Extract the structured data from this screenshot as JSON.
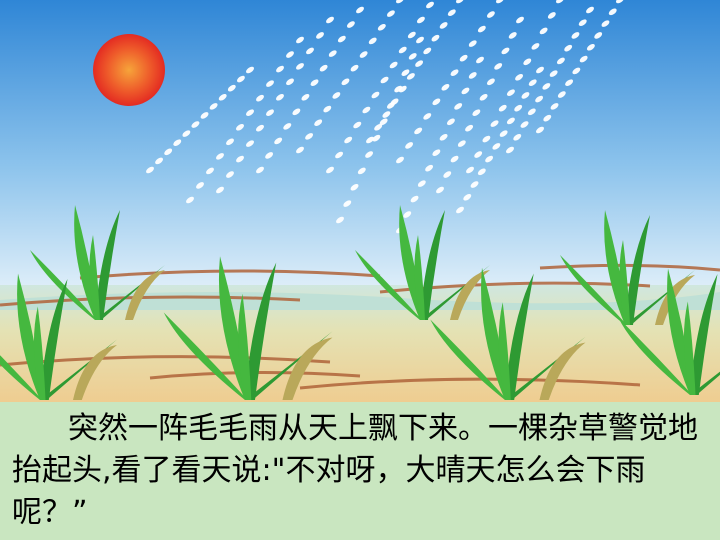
{
  "scene": {
    "description_icons": [
      "sun-icon",
      "rain-drops",
      "grass-tufts",
      "farmland"
    ],
    "colors": {
      "sky_top": "#2f86d6",
      "sky_bottom": "#e6f2fa",
      "sun": "#e83a26",
      "grass": "#3aa53a",
      "field": "#e9d28a",
      "caption_bg": "#c9e6c0"
    }
  },
  "caption": {
    "text": "突然一阵毛毛雨从天上飘下来。一棵杂草警觉地抬起头,看了看天说:\"不对呀，大晴天怎么会下雨呢？”"
  }
}
